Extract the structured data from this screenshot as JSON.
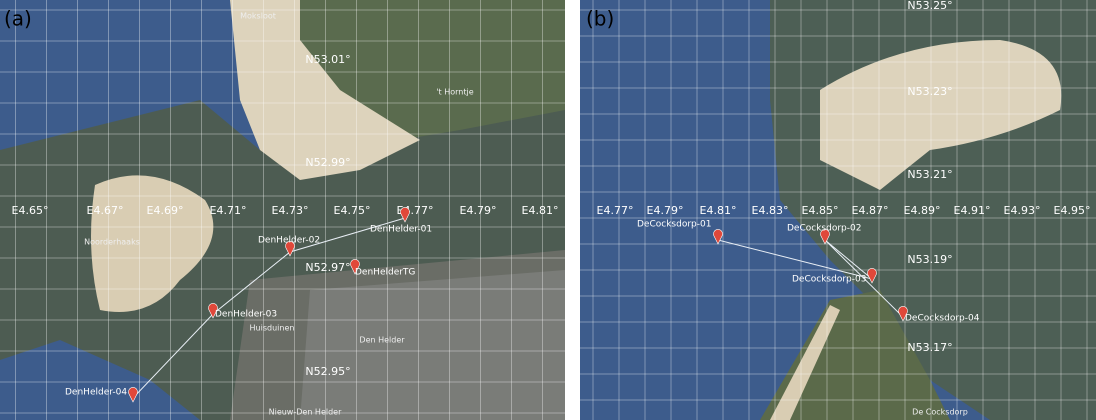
{
  "panels": [
    {
      "label": "(a)",
      "longitudes": [
        "E4.65°",
        "E4.67°",
        "E4.69°",
        "E4.71°",
        "E4.73°",
        "E4.75°",
        "E4.77°",
        "E4.79°",
        "E4.81°"
      ],
      "latitudes": [
        "N53.01°",
        "N52.99°",
        "N52.97°",
        "N52.95°"
      ],
      "places": [
        "Moksloot",
        "'t Horntje",
        "Noorderhaaks",
        "Huisduinen",
        "Den Helder",
        "Nieuw-Den Helder"
      ],
      "markers": [
        "DenHelder-01",
        "DenHelder-02",
        "DenHelderTG",
        "DenHelder-03",
        "DenHelder-04"
      ]
    },
    {
      "label": "(b)",
      "longitudes": [
        "E4.77°",
        "E4.79°",
        "E4.81°",
        "E4.83°",
        "E4.85°",
        "E4.87°",
        "E4.89°",
        "E4.91°",
        "E4.93°",
        "E4.95°"
      ],
      "latitudes": [
        "N53.25°",
        "N53.23°",
        "N53.21°",
        "N53.19°",
        "N53.17°"
      ],
      "places": [
        "De Cocksdorp"
      ],
      "markers": [
        "DeCocksdorp-04",
        "DeCocksdorp-03",
        "DeCocksdorp-02",
        "DeCocksdorp-01"
      ]
    }
  ]
}
